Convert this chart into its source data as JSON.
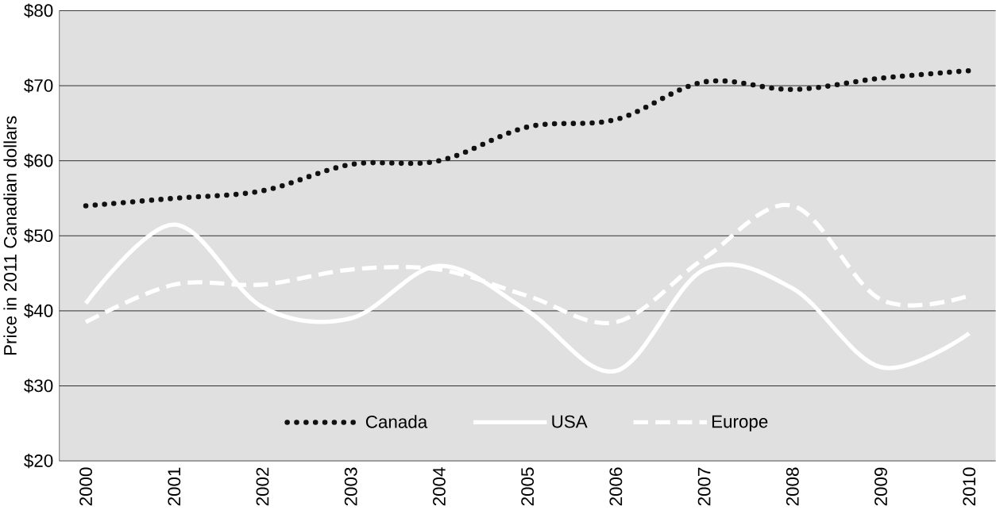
{
  "chart_data": {
    "type": "line",
    "ylabel": "Price in 2011 Canadian dollars",
    "categories": [
      "2000",
      "2001",
      "2002",
      "2003",
      "2004",
      "2005",
      "2006",
      "2007",
      "2008",
      "2009",
      "2010"
    ],
    "series": [
      {
        "name": "Canada",
        "color": "#111111",
        "line_style": "dotted",
        "values": [
          54,
          55,
          56,
          59.5,
          60,
          64.5,
          65.5,
          70.5,
          69.5,
          71,
          72
        ]
      },
      {
        "name": "USA",
        "color": "#ffffff",
        "line_style": "solid",
        "values": [
          41,
          51.5,
          40.5,
          39,
          46,
          40,
          32,
          45.5,
          43,
          32.5,
          37
        ]
      },
      {
        "name": "Europe",
        "color": "#ffffff",
        "line_style": "dashed",
        "values": [
          38.5,
          43.5,
          43.5,
          45.5,
          45.5,
          42,
          38.5,
          47,
          54,
          41.5,
          42
        ]
      }
    ],
    "ylim": [
      20,
      80
    ],
    "yticks": [
      {
        "value": 20,
        "label": "$20"
      },
      {
        "value": 30,
        "label": "$30"
      },
      {
        "value": 40,
        "label": "$40"
      },
      {
        "value": 50,
        "label": "$50"
      },
      {
        "value": 60,
        "label": "$60"
      },
      {
        "value": 70,
        "label": "$70"
      },
      {
        "value": 80,
        "label": "$80"
      }
    ],
    "grid": "y",
    "legend": "bottom"
  }
}
